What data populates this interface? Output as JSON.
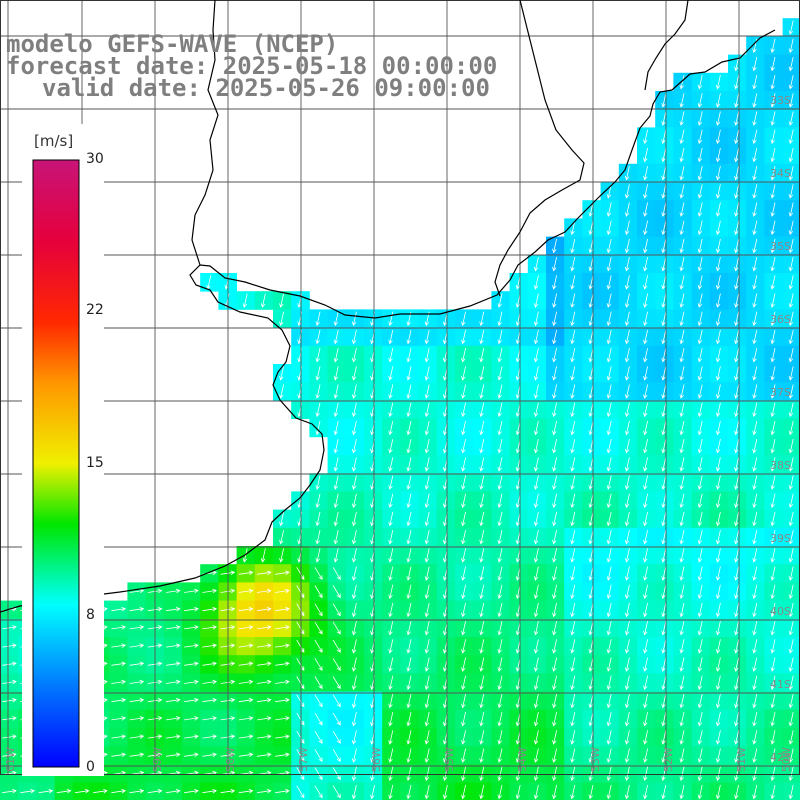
{
  "title": {
    "line1": "modelo GEFS-WAVE (NCEP)",
    "line2": "forecast date: 2025-05-18 00:00:00",
    "line3": "valid date: 2025-05-26 09:00:00"
  },
  "colorbar": {
    "unit": "[m/s]",
    "ticks": [
      "30",
      "22",
      "15",
      "8",
      "0"
    ],
    "min": 0,
    "max": 30
  },
  "grid": {
    "lon_labels": [
      "61W",
      "60W",
      "59W",
      "58W",
      "57W",
      "56W",
      "55W",
      "54W",
      "53W",
      "52W",
      "51W",
      "50W"
    ],
    "lat_labels": [
      "33S",
      "34S",
      "35S",
      "36S",
      "37S",
      "38S",
      "39S",
      "40S",
      "41S",
      "42S",
      "43S"
    ]
  },
  "colors": {
    "land": "#ffffff",
    "coast": "#000000",
    "gridline": "#555555",
    "arrow": "#ffffff"
  }
}
